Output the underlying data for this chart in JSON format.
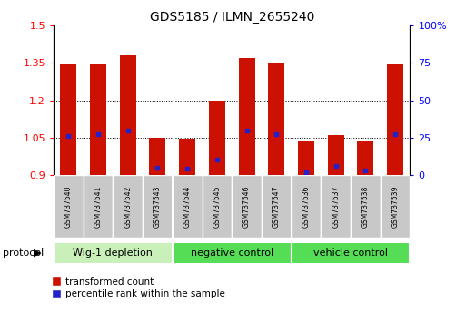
{
  "title": "GDS5185 / ILMN_2655240",
  "samples": [
    "GSM737540",
    "GSM737541",
    "GSM737542",
    "GSM737543",
    "GSM737544",
    "GSM737545",
    "GSM737546",
    "GSM737547",
    "GSM737536",
    "GSM737537",
    "GSM737538",
    "GSM737539"
  ],
  "transformed_counts": [
    1.345,
    1.345,
    1.38,
    1.05,
    1.045,
    1.2,
    1.37,
    1.35,
    1.04,
    1.06,
    1.04,
    1.345
  ],
  "percentile_ranks": [
    26,
    27,
    30,
    5,
    4,
    10,
    30,
    27,
    2,
    6,
    3,
    27
  ],
  "groups": [
    {
      "label": "Wig-1 depletion",
      "indices": [
        0,
        1,
        2,
        3
      ],
      "color": "#c8f0b8"
    },
    {
      "label": "negative control",
      "indices": [
        4,
        5,
        6,
        7
      ],
      "color": "#7cdd7c"
    },
    {
      "label": "vehicle control",
      "indices": [
        8,
        9,
        10,
        11
      ],
      "color": "#7cdd7c"
    }
  ],
  "ymin": 0.9,
  "ymax": 1.5,
  "yticks_left": [
    0.9,
    1.05,
    1.2,
    1.35,
    1.5
  ],
  "yticks_right": [
    0,
    25,
    50,
    75,
    100
  ],
  "bar_color": "#cc1100",
  "dot_color": "#2222cc",
  "bar_width": 0.55,
  "legend_items": [
    {
      "label": "transformed count",
      "color": "#cc1100"
    },
    {
      "label": "percentile rank within the sample",
      "color": "#2222cc"
    }
  ],
  "tick_label_area_color": "#c8c8c8",
  "group_label_wig_color": "#d0f0c0",
  "group_label_neg_color": "#66dd66",
  "group_label_veh_color": "#66dd66"
}
